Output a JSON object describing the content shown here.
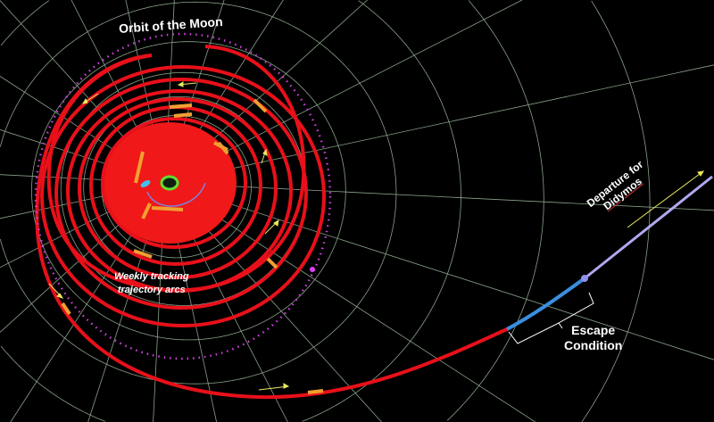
{
  "labels": {
    "moon_orbit": "Orbit of the Moon",
    "weekly_line1": "Weekly tracking",
    "weekly_line2": "trajectory arcs",
    "escape_line1": "Escape",
    "escape_line2": "Condition",
    "departure_line1": "Departure for",
    "departure_line2": "Didymos"
  },
  "colors": {
    "background": "#000000",
    "grid": "#b8d8b8",
    "trajectory": "#e8101a",
    "tracking_arcs": "#f0a030",
    "moon_orbit": "#d040e0",
    "escape_segment": "#3a8ee0",
    "departure_segment": "#b0a8f0",
    "direction_arrows": "#e8e860"
  }
}
